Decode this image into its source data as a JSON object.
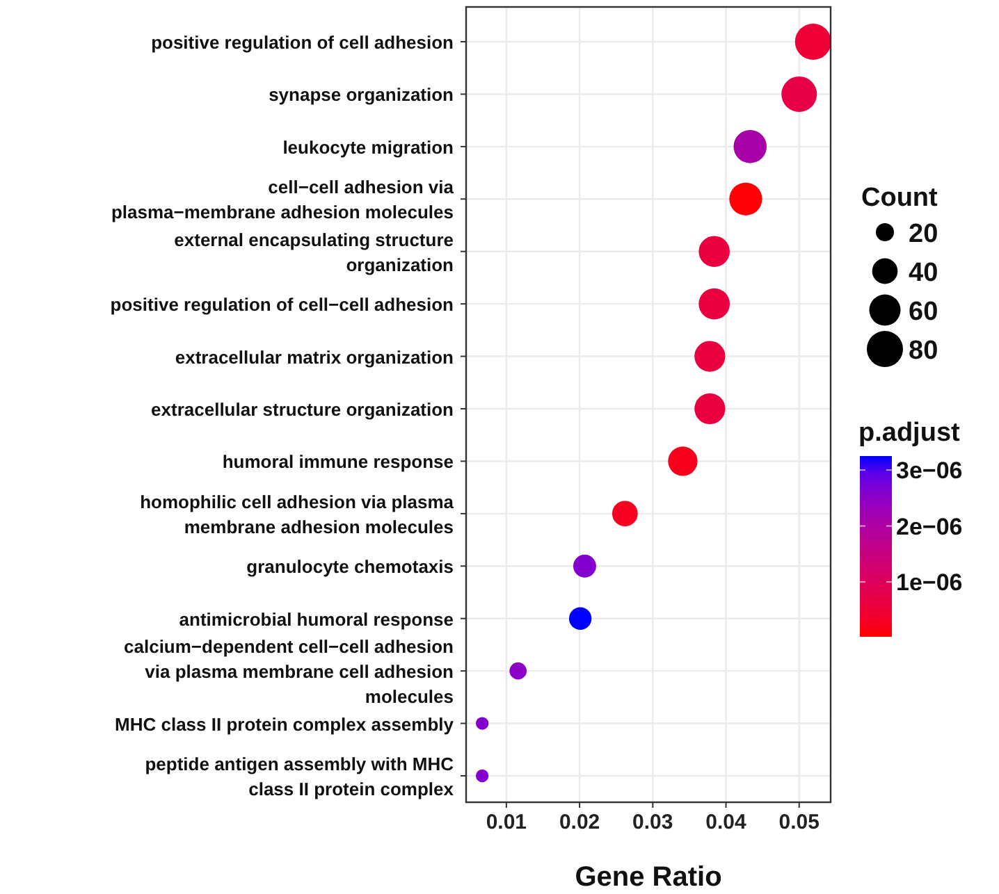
{
  "chart_data": {
    "type": "bubble",
    "xlabel": "Gene Ratio",
    "legend_title": "Count",
    "clabel": "p.adjust",
    "categories": [
      "positive regulation of cell adhesion",
      "synapse organization",
      "leukocyte migration",
      "cell−cell adhesion via\nplasma−membrane adhesion molecules",
      "external encapsulating structure\norganization",
      "positive regulation of cell−cell adhesion",
      "extracellular matrix organization",
      "extracellular structure organization",
      "humoral immune response",
      "homophilic cell adhesion via plasma\nmembrane adhesion molecules",
      "granulocyte chemotaxis",
      "antimicrobial humoral response",
      "calcium−dependent cell−cell adhesion\nvia plasma membrane cell adhesion\nmolecules",
      "MHC class II protein complex assembly",
      "peptide antigen assembly with MHC\nclass II protein complex"
    ],
    "values": [
      0.0519,
      0.05,
      0.0433,
      0.0427,
      0.0384,
      0.0384,
      0.0378,
      0.0378,
      0.0341,
      0.0262,
      0.0207,
      0.0201,
      0.0116,
      0.0067,
      0.0067
    ],
    "sizes": [
      80,
      77,
      67,
      66,
      59,
      59,
      58,
      58,
      53,
      40,
      32,
      31,
      18,
      10,
      10
    ],
    "cvalues": [
      5e-07,
      7e-07,
      2.1e-06,
      5e-08,
      6e-07,
      6e-07,
      6e-07,
      6e-07,
      2e-07,
      2.5e-07,
      2.6e-06,
      3.25e-06,
      2.5e-06,
      2.6e-06,
      2.6e-06
    ],
    "orientation": "horizontal",
    "size_legend": [
      20,
      40,
      60,
      80
    ],
    "clim": [
      2e-08,
      3.25e-06
    ],
    "cticks": [
      {
        "value": 1e-06,
        "label": "1e−06"
      },
      {
        "value": 2e-06,
        "label": "2e−06"
      },
      {
        "value": 3e-06,
        "label": "3e−06"
      }
    ],
    "xlim": [
      0.0045,
      0.0543
    ],
    "xticks": [
      0.01,
      0.02,
      0.03,
      0.04,
      0.05
    ],
    "grid": true
  }
}
